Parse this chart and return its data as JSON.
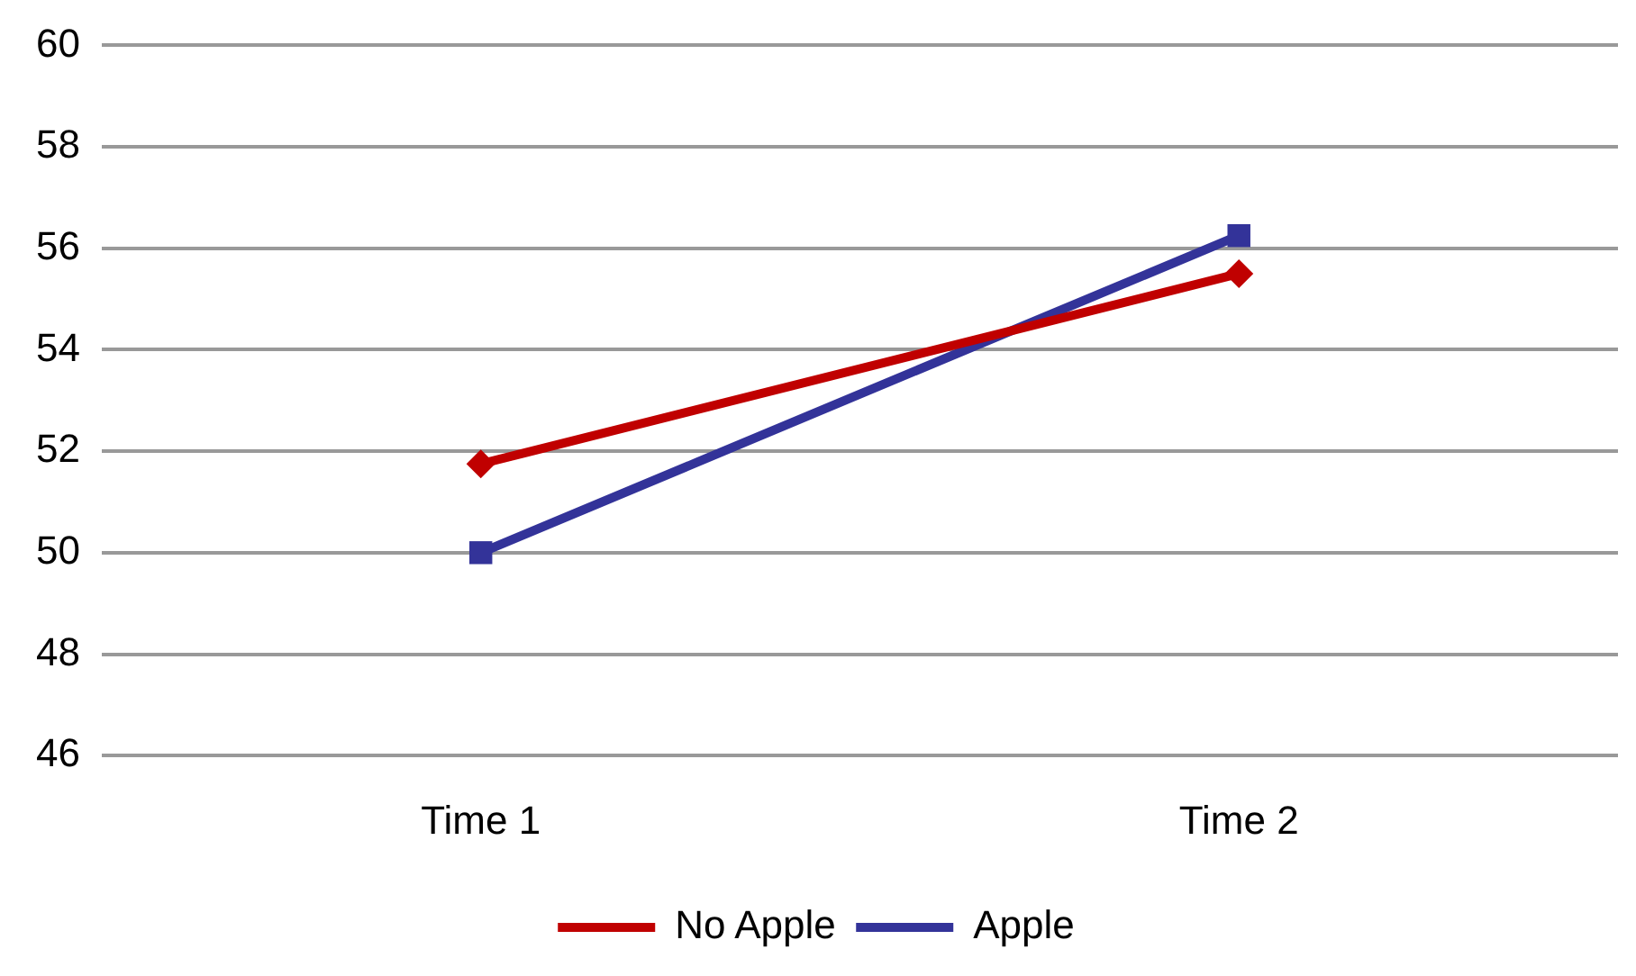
{
  "chart_data": {
    "type": "line",
    "categories": [
      "Time 1",
      "Time 2"
    ],
    "series": [
      {
        "name": "No Apple",
        "color": "#c00000",
        "values": [
          51.75,
          55.5
        ],
        "marker": "diamond"
      },
      {
        "name": "Apple",
        "color": "#333399",
        "values": [
          50,
          56.25
        ],
        "marker": "square"
      }
    ],
    "ylim": [
      46,
      60
    ],
    "yticks": [
      46,
      48,
      50,
      52,
      54,
      56,
      58,
      60
    ],
    "grid": "y",
    "legend": "bottom",
    "line_style": "solid"
  }
}
